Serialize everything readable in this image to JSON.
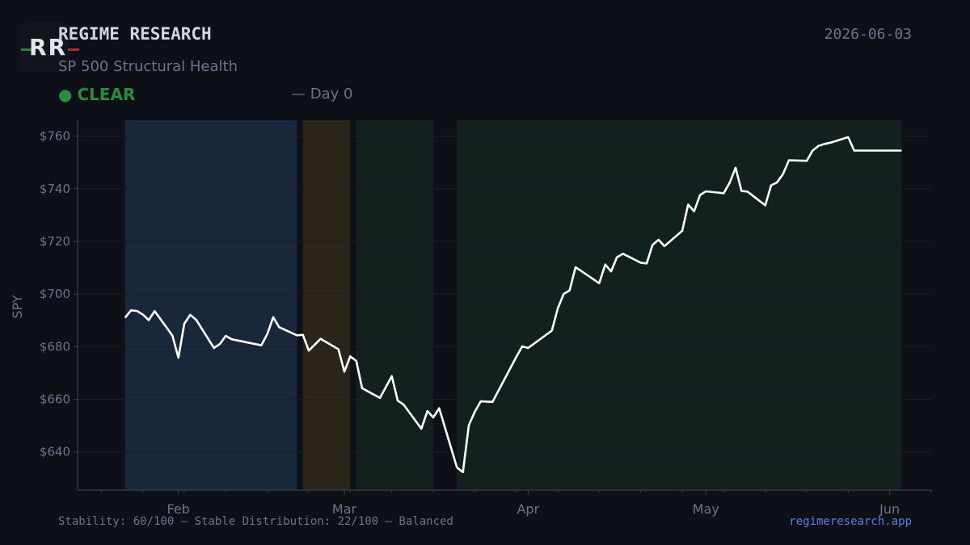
{
  "header": {
    "logo_text": "RR",
    "brand": "REGIME RESEARCH",
    "subtitle": "SP 500 Structural Health",
    "status_dot": "●",
    "status": "CLEAR",
    "day": "— Day 0",
    "date": "2026-06-03"
  },
  "footer": {
    "metrics": "Stability: 60/100 — Stable    Distribution: 22/100 — Balanced",
    "site": "regimeresearch.app"
  },
  "colors": {
    "line": "#ffffff",
    "status_green": "#2e8b3e",
    "regime_blue": "#18273a",
    "regime_orange": "#2a2419",
    "regime_green": "#12211e",
    "link": "#5b7de8"
  },
  "chart_data": {
    "type": "line",
    "title": "",
    "xlabel": "",
    "ylabel": "SPY",
    "ylim": [
      625.5,
      766
    ],
    "xlim": [
      "2026-01-15",
      "2026-06-08"
    ],
    "y_ticks": [
      640,
      660,
      680,
      700,
      720,
      740,
      760
    ],
    "y_tick_labels": [
      "$640",
      "$660",
      "$680",
      "$700",
      "$720",
      "$740",
      "$760"
    ],
    "x_ticks": [
      "2026-02-01",
      "2026-03-01",
      "2026-04-01",
      "2026-05-01",
      "2026-06-01"
    ],
    "x_tick_labels": [
      "Feb",
      "Mar",
      "Apr",
      "May",
      "Jun"
    ],
    "grid": true,
    "regimes": [
      {
        "start": "2026-01-23",
        "end": "2026-02-21",
        "color": "#18273a"
      },
      {
        "start": "2026-02-22",
        "end": "2026-03-02",
        "color": "#2a2419"
      },
      {
        "start": "2026-03-03",
        "end": "2026-03-16",
        "color": "#12211e"
      },
      {
        "start": "2026-03-20",
        "end": "2026-06-03",
        "color": "#12211e"
      }
    ],
    "series": [
      {
        "color": "#ffffff",
        "x": [
          "2026-01-23",
          "2026-01-24",
          "2026-01-25",
          "2026-01-26",
          "2026-01-27",
          "2026-01-28",
          "2026-01-30",
          "2026-01-31",
          "2026-02-01",
          "2026-02-02",
          "2026-02-03",
          "2026-02-04",
          "2026-02-07",
          "2026-02-08",
          "2026-02-09",
          "2026-02-10",
          "2026-02-15",
          "2026-02-16",
          "2026-02-17",
          "2026-02-18",
          "2026-02-21",
          "2026-02-22",
          "2026-02-23",
          "2026-02-25",
          "2026-02-28",
          "2026-03-01",
          "2026-03-02",
          "2026-03-03",
          "2026-03-04",
          "2026-03-07",
          "2026-03-09",
          "2026-03-10",
          "2026-03-11",
          "2026-03-14",
          "2026-03-15",
          "2026-03-16",
          "2026-03-17",
          "2026-03-20",
          "2026-03-21",
          "2026-03-22",
          "2026-03-23",
          "2026-03-24",
          "2026-03-26",
          "2026-03-30",
          "2026-03-31",
          "2026-04-01",
          "2026-04-05",
          "2026-04-06",
          "2026-04-07",
          "2026-04-08",
          "2026-04-09",
          "2026-04-10",
          "2026-04-13",
          "2026-04-14",
          "2026-04-15",
          "2026-04-16",
          "2026-04-17",
          "2026-04-20",
          "2026-04-21",
          "2026-04-22",
          "2026-04-23",
          "2026-04-24",
          "2026-04-27",
          "2026-04-28",
          "2026-04-29",
          "2026-04-30",
          "2026-05-01",
          "2026-05-04",
          "2026-05-05",
          "2026-05-06",
          "2026-05-07",
          "2026-05-08",
          "2026-05-11",
          "2026-05-12",
          "2026-05-13",
          "2026-05-14",
          "2026-05-15",
          "2026-05-18",
          "2026-05-19",
          "2026-05-20",
          "2026-05-21",
          "2026-05-22",
          "2026-05-25",
          "2026-05-26",
          "2026-05-27",
          "2026-05-28",
          "2026-05-29",
          "2026-06-01",
          "2026-06-02",
          "2026-06-03"
        ],
        "y": [
          691,
          693.8,
          693.6,
          692.2,
          690.1,
          693.5,
          687.3,
          684.2,
          675.8,
          688.7,
          692.1,
          690.2,
          679.5,
          681.0,
          684.1,
          682.8,
          680.5,
          684.8,
          691.2,
          687.4,
          684.3,
          684.5,
          678.5,
          683.0,
          679.0,
          670.5,
          676.3,
          674.6,
          664.2,
          660.5,
          668.8,
          659.5,
          658.0,
          648.8,
          655.5,
          653.1,
          656.6,
          634.1,
          632.3,
          650.2,
          655.2,
          659.2,
          659.0,
          676.1,
          680.1,
          679.5,
          686.1,
          694.5,
          700.0,
          701.4,
          710.2,
          708.7,
          704.1,
          711.2,
          708.6,
          714.0,
          715.3,
          711.9,
          711.6,
          718.7,
          720.6,
          718.2,
          724.0,
          734.0,
          731.4,
          737.6,
          739.0,
          738.3,
          742.3,
          748.0,
          739.2,
          738.9,
          733.7,
          741.3,
          742.4,
          745.6,
          750.8,
          750.6,
          754.5,
          756.3,
          757.0,
          757.5,
          759.6,
          754.5,
          754.5,
          754.5,
          754.5,
          754.5,
          754.5,
          754.5
        ]
      }
    ]
  }
}
